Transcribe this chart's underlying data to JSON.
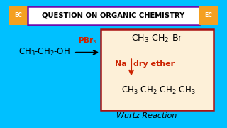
{
  "bg_outer": "#00c0ff",
  "bg_inner": "#fdf0d8",
  "title_text": "QUESTION ON ORGANIC CHEMISTRY",
  "title_bg": "white",
  "title_border": "#6a0dad",
  "title_fontsize": 7.2,
  "ec_bg": "#f5a020",
  "ec_text": "EC",
  "ec_fontsize": 5.5,
  "reactant": "CH$_3$-CH$_2$-OH",
  "reactant_fontsize": 8.5,
  "arrow_label": "PBr$_3$",
  "arrow_color": "#cc2200",
  "arrow_label_fontsize": 7.5,
  "product1": "CH$_3$-CH$_2$-Br",
  "product1_fontsize": 9.0,
  "na_text": "Na",
  "dry_ether": "dry ether",
  "reagent_fontsize": 8.0,
  "reagent_color": "#cc2200",
  "product2": "CH$_3$-CH$_2$-CH$_2$-CH$_3$",
  "product2_fontsize": 8.5,
  "box_color": "#aa1111",
  "wurtz": "Wurtz Reaction",
  "wurtz_fontsize": 8.0
}
